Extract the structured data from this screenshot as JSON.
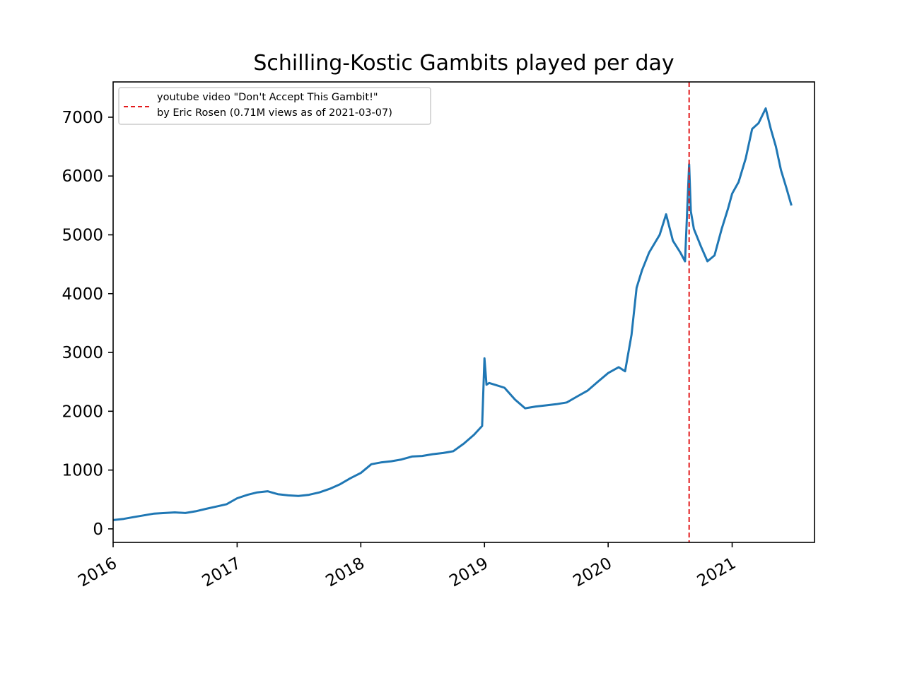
{
  "chart_data": {
    "type": "line",
    "title": "Schilling-Kostic Gambits played per day",
    "xlabel": "",
    "ylabel": "",
    "x_tick_labels": [
      "2016",
      "2017",
      "2018",
      "2019",
      "2020",
      "2021"
    ],
    "y_tick_values": [
      0,
      1000,
      2000,
      3000,
      4000,
      5000,
      6000,
      7000
    ],
    "y_tick_labels": [
      "0",
      "1000",
      "2000",
      "3000",
      "4000",
      "5000",
      "6000",
      "7000"
    ],
    "xlim": [
      "2016-01-01",
      "2021-09-01"
    ],
    "ylim": [
      -230,
      7600
    ],
    "grid": false,
    "legend_position": "upper-left",
    "series": [
      {
        "color": "#1f77b4",
        "x": [
          "2016-01-01",
          "2016-02-01",
          "2016-03-01",
          "2016-04-01",
          "2016-05-01",
          "2016-06-01",
          "2016-07-01",
          "2016-08-01",
          "2016-09-01",
          "2016-10-01",
          "2016-11-01",
          "2016-12-01",
          "2017-01-01",
          "2017-02-01",
          "2017-03-01",
          "2017-04-01",
          "2017-05-01",
          "2017-06-01",
          "2017-07-01",
          "2017-08-01",
          "2017-09-01",
          "2017-10-01",
          "2017-11-01",
          "2017-12-01",
          "2018-01-01",
          "2018-02-01",
          "2018-03-01",
          "2018-04-01",
          "2018-05-01",
          "2018-06-01",
          "2018-07-01",
          "2018-08-01",
          "2018-09-01",
          "2018-10-01",
          "2018-11-01",
          "2018-12-01",
          "2018-12-25",
          "2019-01-01",
          "2019-01-07",
          "2019-01-15",
          "2019-02-01",
          "2019-03-01",
          "2019-04-01",
          "2019-05-01",
          "2019-06-01",
          "2019-07-01",
          "2019-08-01",
          "2019-09-01",
          "2019-10-01",
          "2019-11-01",
          "2019-12-01",
          "2020-01-01",
          "2020-02-01",
          "2020-02-20",
          "2020-03-10",
          "2020-03-25",
          "2020-04-10",
          "2020-05-01",
          "2020-06-01",
          "2020-06-20",
          "2020-07-10",
          "2020-08-01",
          "2020-08-15",
          "2020-08-27",
          "2020-09-01",
          "2020-09-10",
          "2020-10-01",
          "2020-10-20",
          "2020-11-10",
          "2020-12-01",
          "2020-12-20",
          "2021-01-01",
          "2021-01-20",
          "2021-02-10",
          "2021-03-01",
          "2021-03-20",
          "2021-04-10",
          "2021-04-25",
          "2021-05-10",
          "2021-05-25",
          "2021-06-10",
          "2021-06-25"
        ],
        "values": [
          150,
          170,
          200,
          230,
          260,
          270,
          280,
          270,
          300,
          340,
          380,
          420,
          520,
          580,
          620,
          640,
          590,
          570,
          560,
          580,
          620,
          680,
          760,
          860,
          950,
          1100,
          1130,
          1150,
          1180,
          1230,
          1240,
          1270,
          1290,
          1320,
          1450,
          1600,
          1750,
          2900,
          2450,
          2480,
          2450,
          2400,
          2200,
          2050,
          2080,
          2100,
          2120,
          2150,
          2250,
          2350,
          2500,
          2650,
          2750,
          2680,
          3300,
          4100,
          4400,
          4700,
          5000,
          5350,
          4900,
          4700,
          4550,
          6200,
          5400,
          5100,
          4800,
          4550,
          4650,
          5100,
          5450,
          5700,
          5900,
          6300,
          6800,
          6900,
          7150,
          6800,
          6500,
          6100,
          5800,
          5500
        ]
      },
      {
        "type": "vline",
        "color": "#e31a1c",
        "style": "dashed",
        "x": "2020-08-27",
        "label_line1": "youtube video \"Don't Accept This Gambit!\"",
        "label_line2": "by Eric Rosen (0.71M views as of 2021-03-07)"
      }
    ]
  }
}
